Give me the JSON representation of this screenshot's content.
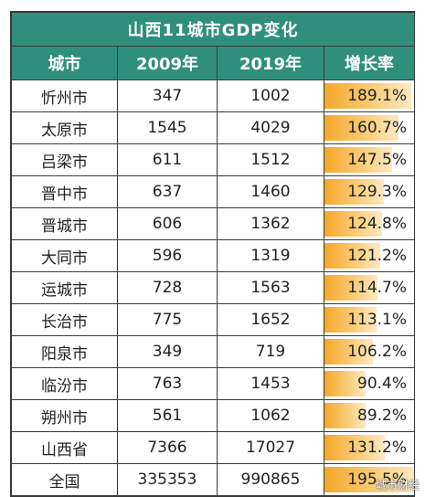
{
  "chart_data": {
    "type": "table",
    "title": "山西11城市GDP变化",
    "columns": [
      "城市",
      "2009年",
      "2019年",
      "增长率"
    ],
    "rows": [
      {
        "city": "忻州市",
        "y2009": "347",
        "y2019": "1002",
        "growth": "189.1%",
        "growth_value": 189.1
      },
      {
        "city": "太原市",
        "y2009": "1545",
        "y2019": "4029",
        "growth": "160.7%",
        "growth_value": 160.7
      },
      {
        "city": "吕梁市",
        "y2009": "611",
        "y2019": "1512",
        "growth": "147.5%",
        "growth_value": 147.5
      },
      {
        "city": "晋中市",
        "y2009": "637",
        "y2019": "1460",
        "growth": "129.3%",
        "growth_value": 129.3
      },
      {
        "city": "晋城市",
        "y2009": "606",
        "y2019": "1362",
        "growth": "124.8%",
        "growth_value": 124.8
      },
      {
        "city": "大同市",
        "y2009": "596",
        "y2019": "1319",
        "growth": "121.2%",
        "growth_value": 121.2
      },
      {
        "city": "运城市",
        "y2009": "728",
        "y2019": "1563",
        "growth": "114.7%",
        "growth_value": 114.7
      },
      {
        "city": "长治市",
        "y2009": "775",
        "y2019": "1652",
        "growth": "113.1%",
        "growth_value": 113.1
      },
      {
        "city": "阳泉市",
        "y2009": "349",
        "y2019": "719",
        "growth": "106.2%",
        "growth_value": 106.2
      },
      {
        "city": "临汾市",
        "y2009": "763",
        "y2019": "1453",
        "growth": "90.4%",
        "growth_value": 90.4
      },
      {
        "city": "朔州市",
        "y2009": "561",
        "y2019": "1062",
        "growth": "89.2%",
        "growth_value": 89.2
      },
      {
        "city": "山西省",
        "y2009": "7366",
        "y2019": "17027",
        "growth": "131.2%",
        "growth_value": 131.2
      },
      {
        "city": "全国",
        "y2009": "335353",
        "y2019": "990865",
        "growth": "195.5%",
        "growth_value": 195.5
      }
    ],
    "bar_scale_max": 195.5
  },
  "colors": {
    "header_bg": "#2f8f7a",
    "bar": "#f5a72a"
  },
  "watermark": "城市财经"
}
